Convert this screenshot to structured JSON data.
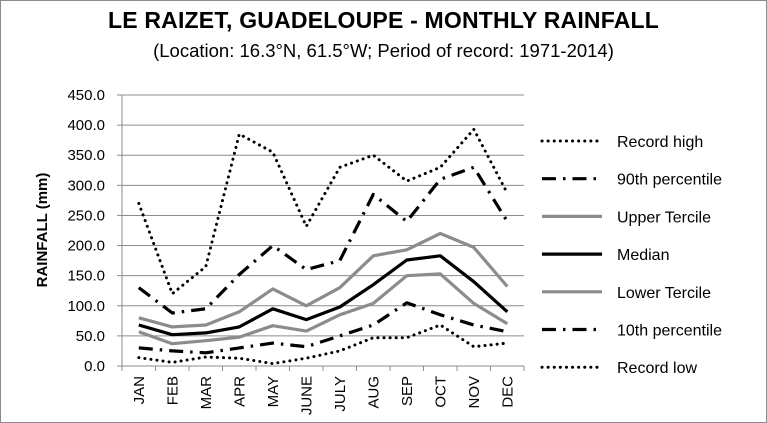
{
  "chart_data": {
    "type": "line",
    "title": "LE RAIZET, GUADELOUPE - MONTHLY RAINFALL",
    "subtitle": "(Location: 16.3°N, 61.5°W; Period of record: 1971-2014)",
    "xlabel": "",
    "ylabel": "RAINFALL (mm)",
    "ylim": [
      0,
      450
    ],
    "yticks": [
      "0.0",
      "50.0",
      "100.0",
      "150.0",
      "200.0",
      "250.0",
      "300.0",
      "350.0",
      "400.0",
      "450.0"
    ],
    "grid": "horizontal",
    "legend_position": "right",
    "categories": [
      "JAN",
      "FEB",
      "MAR",
      "APR",
      "MAY",
      "JUNE",
      "JULY",
      "AUG",
      "SEP",
      "OCT",
      "NOV",
      "DEC"
    ],
    "series": [
      {
        "name": "Record high",
        "values": [
          270,
          120,
          165,
          385,
          355,
          232,
          330,
          350,
          307,
          330,
          393,
          287
        ],
        "color": "#000000",
        "style": "dotted"
      },
      {
        "name": "90th percentile",
        "values": [
          130,
          88,
          95,
          152,
          200,
          160,
          175,
          285,
          240,
          310,
          330,
          240
        ],
        "color": "#000000",
        "style": "dashdot"
      },
      {
        "name": "Upper Tercile",
        "values": [
          80,
          65,
          68,
          90,
          128,
          100,
          130,
          183,
          193,
          220,
          197,
          132
        ],
        "color": "#8c8c8c",
        "style": "solid"
      },
      {
        "name": "Median",
        "values": [
          68,
          52,
          55,
          65,
          95,
          77,
          98,
          135,
          176,
          183,
          140,
          90
        ],
        "color": "#000000",
        "style": "solid"
      },
      {
        "name": "Lower Tercile",
        "values": [
          57,
          37,
          42,
          48,
          67,
          58,
          85,
          104,
          150,
          153,
          104,
          70
        ],
        "color": "#8c8c8c",
        "style": "solid"
      },
      {
        "name": "10th percentile",
        "values": [
          30,
          25,
          22,
          30,
          38,
          32,
          50,
          68,
          105,
          85,
          68,
          57
        ],
        "color": "#000000",
        "style": "dashdot"
      },
      {
        "name": "Record low",
        "values": [
          14,
          6,
          15,
          13,
          4,
          13,
          25,
          47,
          47,
          68,
          32,
          38
        ],
        "color": "#000000",
        "style": "dotted"
      }
    ]
  }
}
